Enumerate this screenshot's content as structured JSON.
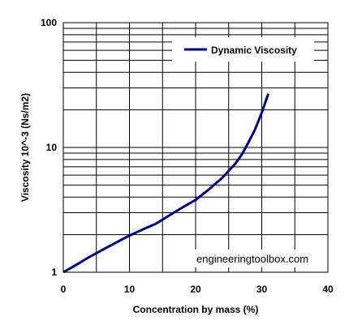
{
  "chart_data": {
    "type": "line",
    "xlabel": "Concentration by mass (%)",
    "ylabel": "Viscosity 10^-3 (Ns/m2)",
    "xlim": [
      0,
      40
    ],
    "ylim": [
      1,
      100
    ],
    "yscale": "log",
    "grid": true,
    "legend_position": "top-right",
    "x_ticks": [
      "0",
      "10",
      "20",
      "30",
      "40"
    ],
    "y_ticks": [
      "1",
      "10",
      "100"
    ],
    "series": [
      {
        "name": "Dynamic Viscosity",
        "color": "#000080",
        "x": [
          0,
          2,
          4,
          6,
          8,
          10,
          12,
          14,
          16,
          18,
          20,
          22,
          24,
          26,
          27,
          28,
          29,
          30,
          31
        ],
        "y": [
          1.0,
          1.15,
          1.33,
          1.52,
          1.73,
          1.97,
          2.2,
          2.45,
          2.85,
          3.3,
          3.8,
          4.6,
          5.7,
          7.4,
          8.8,
          11.0,
          14.0,
          19.0,
          27.0
        ]
      }
    ],
    "watermark": "engineeringtoolbox.com"
  }
}
